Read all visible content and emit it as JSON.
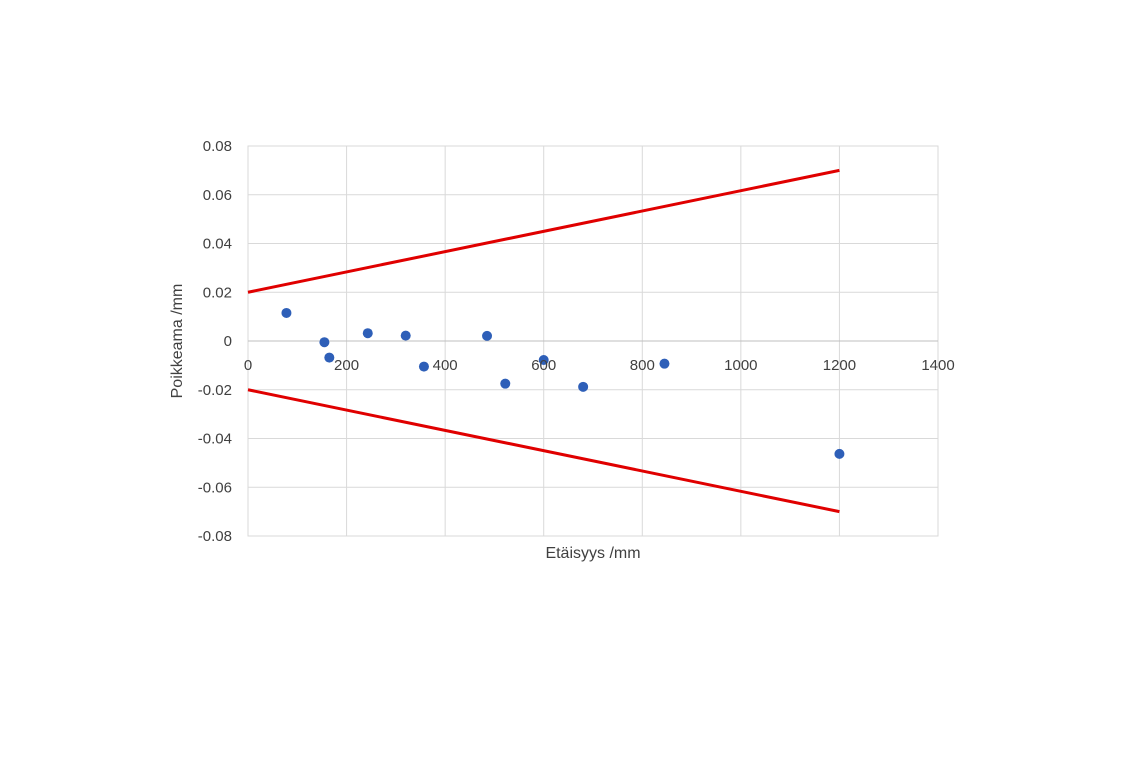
{
  "chart_data": {
    "type": "scatter",
    "title": "",
    "xlabel": "Etäisyys /mm",
    "ylabel": "Poikkeama /mm",
    "xlim": [
      0,
      1400
    ],
    "ylim": [
      -0.08,
      0.08
    ],
    "x_ticks": [
      0,
      200,
      400,
      600,
      800,
      1000,
      1200,
      1400
    ],
    "x_tick_labels": [
      "0",
      "200",
      "400",
      "600",
      "800",
      "1000",
      "1200",
      "1400"
    ],
    "y_ticks": [
      0.08,
      0.06,
      0.04,
      0.02,
      0,
      -0.02,
      -0.04,
      -0.06,
      -0.08
    ],
    "y_tick_labels": [
      "0.08",
      "0.06",
      "0.04",
      "0.02",
      "0",
      "-0.02",
      "-0.04",
      "-0.06",
      "-0.08"
    ],
    "grid": true,
    "legend": "none",
    "points": {
      "color": "#2e5fb8",
      "x": [
        78,
        155,
        165,
        243,
        320,
        357,
        485,
        522,
        600,
        680,
        845,
        1200
      ],
      "y": [
        0.0115,
        -0.0005,
        -0.0068,
        0.0032,
        0.0022,
        -0.0105,
        0.0021,
        -0.0175,
        -0.0078,
        -0.0188,
        -0.0093,
        -0.0463
      ]
    },
    "limit_lines": {
      "color": "#e00000",
      "upper": {
        "x": [
          0,
          1200
        ],
        "y": [
          0.02,
          0.07
        ]
      },
      "lower": {
        "x": [
          0,
          1200
        ],
        "y": [
          -0.02,
          -0.07
        ]
      }
    }
  }
}
